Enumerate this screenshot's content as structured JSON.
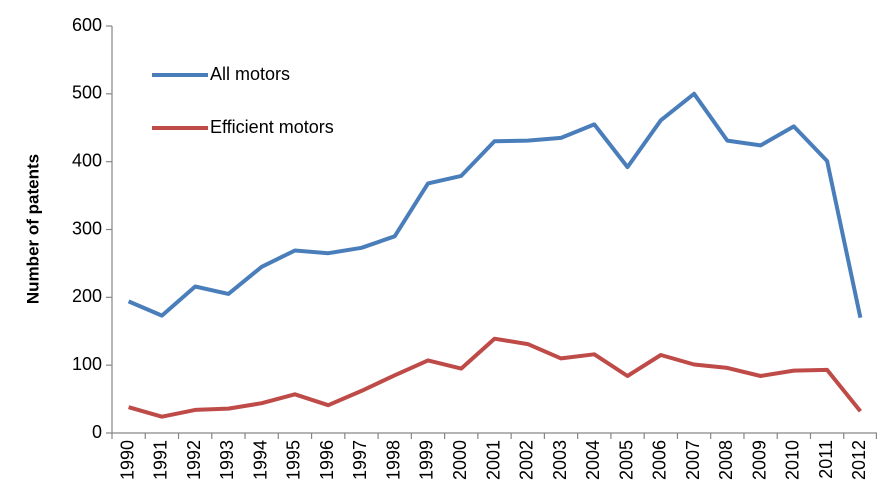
{
  "chart_data": {
    "type": "line",
    "y_label": "Number of patents",
    "categories": [
      "1990",
      "1991",
      "1992",
      "1993",
      "1994",
      "1995",
      "1996",
      "1997",
      "1998",
      "1999",
      "2000",
      "2001",
      "2002",
      "2003",
      "2004",
      "2005",
      "2006",
      "2007",
      "2008",
      "2009",
      "2010",
      "2011",
      "2012"
    ],
    "series": [
      {
        "name": "All motors",
        "color": "#4a7ebb",
        "values": [
          194,
          173,
          216,
          205,
          245,
          269,
          265,
          273,
          290,
          368,
          379,
          430,
          431,
          435,
          455,
          392,
          461,
          500,
          431,
          424,
          452,
          401,
          170
        ]
      },
      {
        "name": "Efficient motors",
        "color": "#be4b48",
        "values": [
          38,
          24,
          34,
          36,
          44,
          57,
          41,
          62,
          85,
          107,
          95,
          139,
          131,
          110,
          116,
          84,
          115,
          101,
          96,
          84,
          92,
          93,
          32
        ]
      }
    ],
    "ylim": [
      0,
      600
    ],
    "yticks": [
      0,
      100,
      200,
      300,
      400,
      500,
      600
    ],
    "grid": false,
    "legend": "top-left"
  }
}
